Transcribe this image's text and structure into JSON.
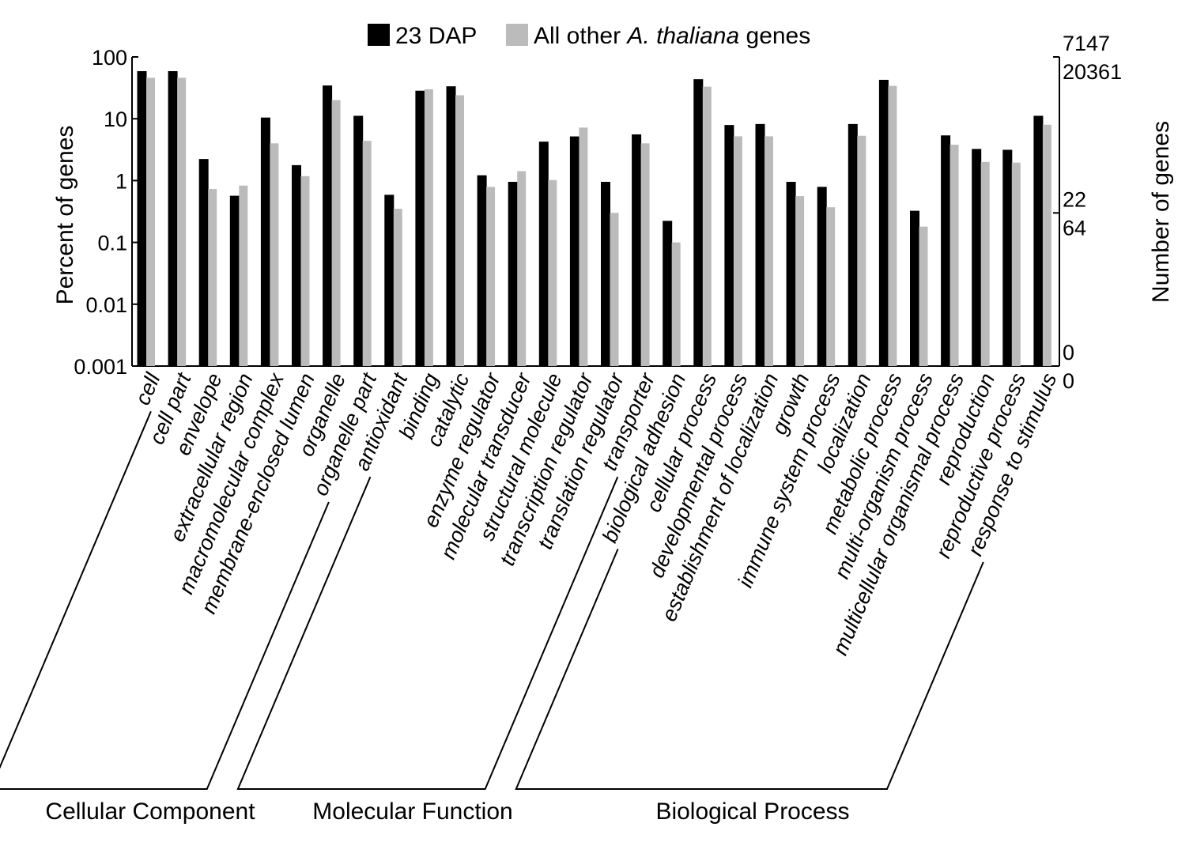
{
  "chart_data": {
    "type": "bar",
    "y_scale": "log",
    "ylim": [
      0.001,
      100
    ],
    "ylabel": "Percent of genes",
    "y2label": "Number of genes",
    "y_ticks": [
      "100",
      "10",
      "1",
      "0.1",
      "0.01",
      "0.001"
    ],
    "y_tick_values": [
      100,
      10,
      1,
      0.1,
      0.01,
      0.001
    ],
    "right_axis_labels": [
      {
        "series": 0,
        "value": 7147,
        "text": "7147",
        "at_percent": 100
      },
      {
        "series": 1,
        "value": 20361,
        "text": "20361",
        "at_percent": 100
      },
      {
        "series": 0,
        "value": 22,
        "text": "22",
        "at_percent": 0.3
      },
      {
        "series": 1,
        "value": 64,
        "text": "64",
        "at_percent": 0.3
      },
      {
        "series": 0,
        "value": 0,
        "text": "0",
        "at_percent": 0.001
      },
      {
        "series": 1,
        "value": 0,
        "text": "0",
        "at_percent": 0.001
      }
    ],
    "legend": {
      "placement": "top",
      "items": [
        {
          "series": 0,
          "text": "23 DAP"
        },
        {
          "series": 1,
          "prefix": "All other ",
          "italic": "A. thaliana",
          "suffix": " genes"
        }
      ]
    },
    "categories": [
      "cell",
      "cell part",
      "envelope",
      "extracellular region",
      "macromolecular complex",
      "membrane-enclosed lumen",
      "organelle",
      "organelle part",
      "antioxidant",
      "binding",
      "catalytic",
      "enzyme regulator",
      "molecular transducer",
      "structural molecule",
      "transcription regulator",
      "translation regulator",
      "transporter",
      "biological adhesion",
      "cellular process",
      "developmental process",
      "establishment of localization",
      "growth",
      "immune system process",
      "localization",
      "metabolic process",
      "multi-organism process",
      "multicellular organismal process",
      "reproduction",
      "reproductive process",
      "response to stimulus"
    ],
    "series": [
      {
        "name": "23 DAP",
        "color": "#000000",
        "values": [
          58,
          58,
          2.2,
          0.56,
          10.3,
          1.75,
          34,
          11,
          0.58,
          28,
          33,
          1.2,
          0.94,
          4.2,
          5.1,
          0.94,
          5.5,
          0.22,
          43,
          7.8,
          8.1,
          0.94,
          0.78,
          8.1,
          42,
          0.32,
          5.3,
          3.2,
          3.1,
          11
        ]
      },
      {
        "name": "All other A. thaliana genes",
        "color": "#bbbbbb",
        "values": [
          46,
          46,
          0.73,
          0.83,
          4.0,
          1.18,
          20,
          4.4,
          0.35,
          30,
          24,
          0.79,
          1.42,
          1.02,
          7.2,
          0.3,
          4.0,
          0.1,
          33,
          5.2,
          5.2,
          0.56,
          0.37,
          5.3,
          34,
          0.18,
          3.8,
          2.0,
          1.95,
          8.0
        ]
      }
    ],
    "groups": [
      {
        "label": "Cellular Component",
        "start": 0,
        "end": 7
      },
      {
        "label": "Molecular Function",
        "start": 8,
        "end": 16
      },
      {
        "label": "Biological Process",
        "start": 17,
        "end": 29
      }
    ],
    "grid": false
  }
}
